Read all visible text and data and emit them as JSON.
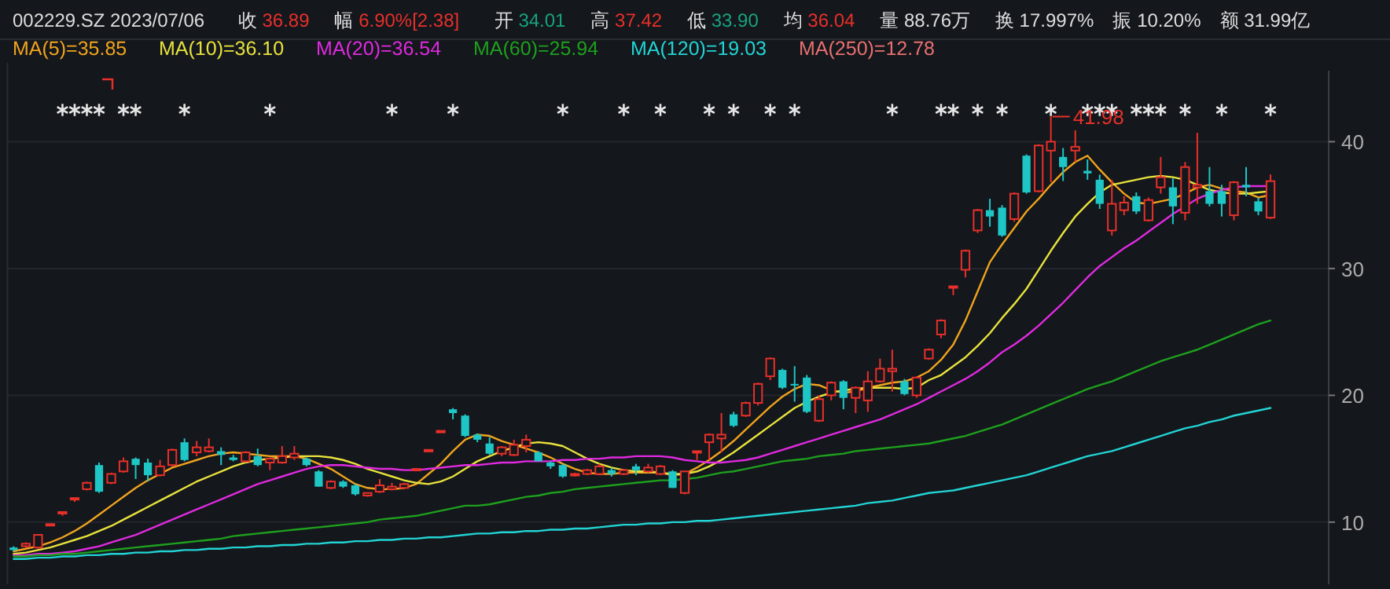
{
  "chart_data": {
    "type": "candlestick",
    "title": "002229.SZ 2023/07/06",
    "annotations": [
      "收 36.89",
      "幅 6.90%[2.38]",
      "开 34.01",
      "高 37.42",
      "低 33.90",
      "均 36.04",
      "量 88.76万",
      "换 17.997%",
      "振 10.20%",
      "额 31.99亿",
      "MA(250)=12.78",
      {
        "text": "41.98",
        "y": 41.98
      }
    ],
    "categories": [
      null,
      null,
      null,
      null,
      null,
      null,
      null,
      null,
      null,
      null,
      null,
      null,
      null,
      null,
      null,
      null,
      null,
      null,
      null,
      null,
      null,
      null,
      null,
      null,
      null,
      null,
      null,
      null,
      null,
      null,
      null,
      null,
      null,
      null,
      null,
      null,
      null,
      null,
      null,
      null,
      null,
      null,
      null,
      null,
      null,
      null,
      null,
      null,
      null,
      null,
      null,
      null,
      null,
      null,
      null,
      null,
      null,
      null,
      null,
      null,
      null,
      null,
      null,
      null,
      null,
      null,
      null,
      null,
      null,
      null,
      null,
      null,
      null,
      null,
      null,
      null,
      null,
      null,
      null,
      null,
      null,
      null,
      null,
      null,
      null,
      null,
      null,
      null,
      null,
      null,
      null,
      null,
      null,
      null,
      null,
      null,
      null,
      null,
      null,
      null,
      null,
      null,
      null,
      null
    ],
    "ohlc": [
      [
        8.0,
        8.1,
        7.7,
        7.8
      ],
      [
        8.1,
        8.4,
        8.0,
        8.3
      ],
      [
        8.0,
        9.0,
        7.9,
        9.0
      ],
      [
        9.85,
        9.85,
        9.85,
        9.85
      ],
      [
        10.8,
        10.8,
        10.5,
        10.8
      ],
      [
        11.9,
        11.9,
        11.6,
        11.9
      ],
      [
        12.6,
        13.2,
        12.5,
        13.1
      ],
      [
        14.5,
        14.7,
        12.3,
        12.4
      ],
      [
        13.1,
        13.9,
        13.0,
        13.8
      ],
      [
        14.0,
        15.1,
        13.9,
        14.8
      ],
      [
        15.0,
        15.1,
        13.4,
        14.5
      ],
      [
        14.7,
        15.0,
        13.2,
        13.7
      ],
      [
        13.7,
        14.9,
        13.6,
        14.4
      ],
      [
        14.5,
        15.8,
        14.4,
        15.7
      ],
      [
        16.3,
        16.6,
        14.8,
        14.9
      ],
      [
        15.5,
        16.4,
        15.2,
        15.9
      ],
      [
        15.6,
        16.6,
        15.5,
        15.9
      ],
      [
        15.6,
        15.9,
        14.5,
        15.3
      ],
      [
        15.1,
        15.3,
        14.8,
        14.9
      ],
      [
        14.8,
        15.6,
        14.7,
        15.5
      ],
      [
        15.2,
        15.8,
        14.4,
        14.5
      ],
      [
        14.7,
        15.1,
        14.1,
        15.0
      ],
      [
        14.7,
        16.0,
        14.6,
        15.2
      ],
      [
        15.1,
        16.0,
        14.9,
        15.4
      ],
      [
        15.0,
        15.1,
        14.4,
        14.5
      ],
      [
        14.0,
        14.1,
        12.8,
        12.8
      ],
      [
        12.7,
        13.3,
        12.6,
        13.2
      ],
      [
        13.2,
        13.3,
        12.7,
        12.8
      ],
      [
        12.9,
        13.0,
        12.1,
        12.2
      ],
      [
        12.1,
        12.3,
        12.0,
        12.3
      ],
      [
        12.4,
        13.4,
        12.3,
        12.9
      ],
      [
        12.6,
        13.1,
        12.5,
        12.8
      ],
      [
        12.7,
        13.1,
        12.6,
        13.0
      ],
      [
        14.2,
        14.2,
        14.2,
        14.2
      ],
      [
        15.7,
        15.7,
        15.7,
        15.7
      ],
      [
        17.2,
        17.2,
        17.2,
        17.2
      ],
      [
        18.9,
        19.0,
        18.1,
        18.6
      ],
      [
        18.4,
        18.5,
        16.7,
        16.8
      ],
      [
        16.9,
        17.0,
        16.3,
        16.5
      ],
      [
        16.2,
        16.7,
        15.3,
        15.4
      ],
      [
        15.4,
        16.0,
        15.2,
        15.9
      ],
      [
        15.3,
        16.5,
        15.2,
        16.1
      ],
      [
        16.0,
        16.9,
        15.5,
        16.5
      ],
      [
        15.5,
        15.6,
        14.8,
        14.8
      ],
      [
        14.7,
        14.8,
        14.2,
        14.4
      ],
      [
        14.5,
        14.6,
        13.5,
        13.6
      ],
      [
        13.7,
        13.9,
        13.6,
        13.8
      ],
      [
        13.8,
        14.2,
        13.7,
        14.1
      ],
      [
        13.8,
        14.6,
        13.7,
        14.4
      ],
      [
        14.1,
        14.3,
        13.6,
        13.8
      ],
      [
        13.8,
        14.2,
        13.7,
        14.1
      ],
      [
        14.4,
        14.6,
        13.7,
        14.1
      ],
      [
        14.0,
        14.6,
        13.9,
        14.3
      ],
      [
        13.8,
        14.5,
        13.7,
        14.4
      ],
      [
        14.0,
        14.1,
        12.7,
        12.7
      ],
      [
        12.3,
        14.0,
        12.2,
        14.0
      ],
      [
        15.6,
        15.6,
        14.9,
        15.6
      ],
      [
        16.3,
        17.0,
        14.9,
        16.9
      ],
      [
        16.6,
        18.6,
        15.5,
        16.9
      ],
      [
        18.5,
        18.7,
        17.5,
        17.6
      ],
      [
        18.4,
        19.5,
        18.3,
        19.4
      ],
      [
        19.4,
        21.0,
        19.2,
        20.9
      ],
      [
        21.5,
        23.0,
        21.2,
        22.9
      ],
      [
        22.0,
        22.1,
        20.5,
        20.6
      ],
      [
        20.9,
        22.3,
        19.5,
        20.8
      ],
      [
        21.4,
        21.6,
        18.6,
        18.7
      ],
      [
        18.0,
        20.0,
        17.9,
        19.7
      ],
      [
        20.0,
        21.1,
        19.6,
        21.0
      ],
      [
        21.1,
        21.2,
        18.9,
        19.8
      ],
      [
        19.8,
        20.7,
        18.6,
        20.6
      ],
      [
        19.6,
        21.9,
        18.7,
        21.1
      ],
      [
        21.1,
        22.9,
        21.0,
        22.1
      ],
      [
        21.9,
        23.6,
        20.3,
        22.1
      ],
      [
        21.1,
        21.3,
        20.0,
        20.1
      ],
      [
        20.0,
        21.5,
        19.8,
        21.4
      ],
      [
        22.9,
        23.7,
        22.8,
        23.6
      ],
      [
        24.8,
        26.0,
        24.5,
        25.9
      ],
      [
        28.6,
        28.6,
        27.9,
        28.6
      ],
      [
        29.9,
        31.5,
        29.3,
        31.4
      ],
      [
        33.0,
        34.7,
        32.8,
        34.6
      ],
      [
        34.6,
        35.5,
        33.3,
        34.1
      ],
      [
        34.8,
        35.0,
        32.5,
        32.6
      ],
      [
        33.9,
        36.0,
        33.7,
        35.9
      ],
      [
        38.9,
        39.0,
        35.9,
        36.0
      ],
      [
        36.1,
        39.8,
        36.0,
        39.7
      ],
      [
        39.3,
        41.98,
        36.8,
        40.0
      ],
      [
        38.8,
        39.5,
        36.9,
        38.0
      ],
      [
        39.3,
        40.9,
        38.4,
        39.6
      ],
      [
        37.7,
        38.6,
        37.0,
        37.5
      ],
      [
        37.0,
        37.4,
        34.7,
        35.1
      ],
      [
        33.0,
        37.0,
        32.6,
        35.1
      ],
      [
        34.6,
        35.7,
        34.2,
        35.2
      ],
      [
        35.7,
        36.0,
        34.3,
        34.5
      ],
      [
        33.8,
        35.6,
        33.7,
        35.4
      ],
      [
        36.4,
        38.8,
        35.9,
        37.2
      ],
      [
        36.4,
        37.1,
        33.5,
        34.9
      ],
      [
        34.4,
        38.4,
        33.8,
        38.0
      ],
      [
        36.4,
        40.7,
        35.1,
        36.6
      ],
      [
        36.1,
        38.0,
        34.9,
        35.1
      ],
      [
        36.1,
        36.6,
        34.1,
        35.1
      ],
      [
        34.2,
        36.9,
        33.8,
        36.8
      ],
      [
        36.6,
        38.0,
        35.7,
        36.4
      ],
      [
        35.3,
        35.6,
        34.2,
        34.5
      ],
      [
        34.01,
        37.42,
        33.9,
        36.89
      ]
    ],
    "series": [
      {
        "name": "MA(5)=35.85",
        "type": "line",
        "color": "#f0a41e",
        "values": [
          7.7,
          7.9,
          8.1,
          8.4,
          8.8,
          9.3,
          9.9,
          10.6,
          11.3,
          12.0,
          12.7,
          13.3,
          13.8,
          14.3,
          14.6,
          14.9,
          15.2,
          15.4,
          15.5,
          15.4,
          15.3,
          15.2,
          15.2,
          15.2,
          15.0,
          14.6,
          14.2,
          13.6,
          13.0,
          12.7,
          12.6,
          12.6,
          12.7,
          13.0,
          13.8,
          14.6,
          15.6,
          16.5,
          16.9,
          16.8,
          16.4,
          16.1,
          15.8,
          15.5,
          15.1,
          14.6,
          14.2,
          13.9,
          13.8,
          13.8,
          13.9,
          13.9,
          13.9,
          13.9,
          13.7,
          13.8,
          14.3,
          14.9,
          15.6,
          16.4,
          17.3,
          18.2,
          19.1,
          19.9,
          20.5,
          20.9,
          20.8,
          20.4,
          20.2,
          20.3,
          20.6,
          20.8,
          21.0,
          21.1,
          21.4,
          21.9,
          22.8,
          24.0,
          25.9,
          28.2,
          30.5,
          31.9,
          33.2,
          34.5,
          35.5,
          36.6,
          37.6,
          38.4,
          38.9,
          37.8,
          36.8,
          35.9,
          35.2,
          35.1,
          35.3,
          35.5,
          35.9,
          36.4,
          36.6,
          36.3,
          36.1,
          36.0,
          35.6,
          35.8
        ]
      },
      {
        "name": "MA(10)=36.10",
        "type": "line",
        "color": "#e8e23c",
        "values": [
          7.5,
          7.6,
          7.8,
          8.0,
          8.3,
          8.6,
          8.9,
          9.3,
          9.7,
          10.2,
          10.7,
          11.2,
          11.7,
          12.2,
          12.7,
          13.2,
          13.6,
          14.0,
          14.4,
          14.7,
          14.9,
          15.0,
          15.1,
          15.2,
          15.2,
          15.2,
          15.1,
          14.9,
          14.6,
          14.2,
          13.9,
          13.6,
          13.3,
          13.1,
          13.0,
          13.2,
          13.6,
          14.2,
          14.8,
          15.2,
          15.6,
          15.9,
          16.2,
          16.3,
          16.2,
          16.0,
          15.5,
          15.0,
          14.6,
          14.3,
          14.1,
          14.0,
          14.0,
          13.9,
          13.8,
          13.8,
          14.0,
          14.4,
          14.9,
          15.5,
          16.2,
          16.9,
          17.6,
          18.3,
          19.0,
          19.5,
          19.9,
          20.2,
          20.4,
          20.5,
          20.6,
          20.6,
          20.6,
          20.5,
          20.6,
          21.2,
          21.6,
          22.3,
          23.0,
          23.9,
          24.9,
          26.1,
          27.2,
          28.4,
          29.9,
          31.4,
          32.8,
          34.1,
          35.1,
          36.0,
          36.6,
          36.8,
          37.0,
          37.2,
          37.3,
          37.2,
          37.0,
          36.6,
          36.2,
          36.0,
          35.9,
          35.9,
          36.0,
          36.1
        ]
      },
      {
        "name": "MA(20)=36.54",
        "type": "line",
        "color": "#e02ae0",
        "values": [
          7.4,
          7.4,
          7.5,
          7.5,
          7.6,
          7.7,
          7.9,
          8.1,
          8.4,
          8.7,
          9.0,
          9.4,
          9.8,
          10.2,
          10.6,
          11.0,
          11.4,
          11.8,
          12.2,
          12.6,
          13.0,
          13.3,
          13.6,
          13.9,
          14.2,
          14.4,
          14.5,
          14.5,
          14.4,
          14.3,
          14.2,
          14.2,
          14.1,
          14.1,
          14.2,
          14.3,
          14.4,
          14.5,
          14.5,
          14.6,
          14.7,
          14.7,
          14.8,
          14.8,
          14.8,
          14.9,
          14.9,
          15.0,
          15.0,
          15.1,
          15.1,
          15.2,
          15.2,
          15.2,
          15.1,
          14.9,
          14.8,
          14.7,
          14.7,
          14.8,
          14.9,
          15.1,
          15.4,
          15.7,
          16.0,
          16.3,
          16.6,
          16.9,
          17.2,
          17.5,
          17.8,
          18.1,
          18.5,
          18.9,
          19.3,
          19.8,
          20.3,
          20.8,
          21.3,
          21.9,
          22.6,
          23.4,
          24.0,
          24.7,
          25.5,
          26.4,
          27.3,
          28.3,
          29.3,
          30.2,
          30.9,
          31.6,
          32.2,
          32.9,
          33.6,
          34.3,
          34.9,
          35.5,
          35.9,
          36.2,
          36.4,
          36.5,
          36.5,
          36.5
        ]
      },
      {
        "name": "MA(60)=25.94",
        "type": "line",
        "color": "#1ea01e",
        "values": [
          7.3,
          7.3,
          7.4,
          7.4,
          7.5,
          7.5,
          7.6,
          7.7,
          7.8,
          7.9,
          8.0,
          8.1,
          8.2,
          8.3,
          8.4,
          8.5,
          8.6,
          8.7,
          8.9,
          9.0,
          9.1,
          9.2,
          9.3,
          9.4,
          9.5,
          9.6,
          9.7,
          9.8,
          9.9,
          10.0,
          10.2,
          10.3,
          10.4,
          10.5,
          10.7,
          10.9,
          11.1,
          11.3,
          11.3,
          11.4,
          11.6,
          11.8,
          12.0,
          12.1,
          12.3,
          12.4,
          12.6,
          12.7,
          12.8,
          12.9,
          13.0,
          13.1,
          13.2,
          13.3,
          13.3,
          13.4,
          13.5,
          13.7,
          13.9,
          14.0,
          14.2,
          14.4,
          14.6,
          14.8,
          14.9,
          15.0,
          15.2,
          15.3,
          15.4,
          15.6,
          15.7,
          15.8,
          15.9,
          16.0,
          16.1,
          16.2,
          16.4,
          16.6,
          16.8,
          17.1,
          17.4,
          17.7,
          18.1,
          18.5,
          18.9,
          19.3,
          19.7,
          20.1,
          20.5,
          20.8,
          21.1,
          21.5,
          21.9,
          22.3,
          22.7,
          23.0,
          23.3,
          23.6,
          24.0,
          24.4,
          24.8,
          25.2,
          25.6,
          25.9
        ]
      },
      {
        "name": "MA(120)=19.03",
        "type": "line",
        "color": "#22d4d4",
        "values": [
          7.1,
          7.1,
          7.2,
          7.2,
          7.3,
          7.3,
          7.4,
          7.4,
          7.5,
          7.5,
          7.6,
          7.6,
          7.7,
          7.7,
          7.8,
          7.8,
          7.9,
          7.9,
          8.0,
          8.0,
          8.1,
          8.1,
          8.2,
          8.2,
          8.3,
          8.3,
          8.4,
          8.4,
          8.5,
          8.5,
          8.6,
          8.6,
          8.7,
          8.7,
          8.8,
          8.8,
          8.9,
          9.0,
          9.1,
          9.1,
          9.2,
          9.2,
          9.3,
          9.3,
          9.4,
          9.4,
          9.5,
          9.5,
          9.6,
          9.7,
          9.8,
          9.8,
          9.9,
          9.9,
          10.0,
          10.0,
          10.1,
          10.1,
          10.2,
          10.3,
          10.4,
          10.5,
          10.6,
          10.7,
          10.8,
          10.9,
          11.0,
          11.1,
          11.2,
          11.3,
          11.5,
          11.6,
          11.7,
          11.9,
          12.1,
          12.3,
          12.4,
          12.5,
          12.7,
          12.9,
          13.1,
          13.3,
          13.5,
          13.7,
          14.0,
          14.3,
          14.6,
          14.9,
          15.2,
          15.4,
          15.6,
          15.9,
          16.2,
          16.5,
          16.8,
          17.1,
          17.4,
          17.6,
          17.9,
          18.1,
          18.4,
          18.6,
          18.8,
          19.0
        ]
      },
      {
        "type": "scatter",
        "marker": "cross",
        "color": "#e6e6e6",
        "values": [
          null,
          null,
          null,
          null,
          42.5,
          42.5,
          42.5,
          42.5,
          null,
          42.5,
          42.5,
          null,
          null,
          null,
          42.5,
          null,
          null,
          null,
          null,
          null,
          null,
          42.5,
          null,
          null,
          null,
          null,
          null,
          null,
          null,
          null,
          null,
          42.5,
          null,
          null,
          null,
          null,
          42.5,
          null,
          null,
          null,
          null,
          null,
          null,
          null,
          null,
          42.5,
          null,
          null,
          null,
          null,
          42.5,
          null,
          null,
          42.5,
          null,
          null,
          null,
          42.5,
          null,
          42.5,
          null,
          null,
          42.5,
          null,
          42.5,
          null,
          null,
          null,
          null,
          null,
          null,
          null,
          42.5,
          null,
          null,
          null,
          42.5,
          42.5,
          null,
          42.5,
          null,
          42.5,
          null,
          null,
          null,
          42.5,
          null,
          null,
          42.5,
          42.5,
          42.5,
          null,
          42.5,
          42.5,
          42.5,
          null,
          42.5,
          null,
          null,
          42.5,
          null,
          null,
          null,
          42.5
        ]
      }
    ],
    "ylim": [
      5.1,
      45.6
    ],
    "yticks": [
      10,
      20,
      30,
      40
    ],
    "grid": "y",
    "tick_labels": "y",
    "legend": "top left"
  }
}
